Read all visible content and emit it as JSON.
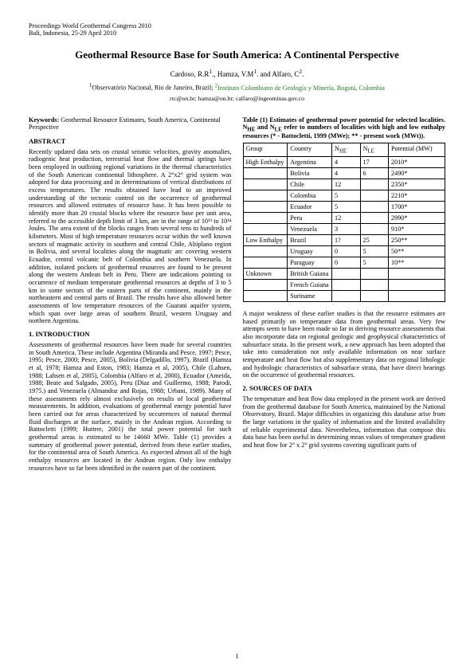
{
  "proc": {
    "line1": "Proceedings World Geothermal Congress 2010",
    "line2": "Bali, Indonesia, 25-29 April 2010"
  },
  "title": "Geothermal Resource Base for South America: A Continental Perspective",
  "authors_html": "Cardoso, R.R<sup>1</sup>., Hamza, V.M<sup>1</sup>. and Alfaro, C<sup>2</sup>.",
  "affil_html": "<sup>1</sup>Observatório Nacional, Rio de Janeiro, Brazil; <span class='green'><sup>2</sup>Instituto Colombiano de Geología y Minería, Bogotá, Colombia</span>",
  "emails": "rrc@on.br; hamza@on.br; calfaro@ingeominas.gov.co",
  "keywords_label": "Keywords:",
  "keywords_text": " Geothermal Resource Estimates, South America, Continental Perspective",
  "abstract_head": "ABSTRACT",
  "abstract_text": "Recently updated data sets on crustal seismic velocities, gravity anomalies, radiogenic heat production, terrestrial heat flow and thermal springs have been employed in outlining regional variations in the thermal characteristics of the South American continental lithosphere. A 2°x2° grid system was adopted for data processing and in determinations of vertical distributions of excess temperatures. The results obtained have lead to an improved understanding of the tectonic control on the occurrence of geothermal resources and allowed estimates of resource base. It has been possible to identify more than 20 crustal blocks where the resource base per unit area, referred to the accessible depth limit of 3 km, are in the range of 10¹³ to 10¹⁴ Joules. The area extent of the blocks ranges from several tens to hundreds of kilometers. Most of high temperature resources occur within the well known sectors of magmatic activity in southern and central Chile, Altiplano region in Bolivia, and several localities along the magmatic arc covering western Ecuador, central volcanic belt of Colombia and southern Venezuela. In addition, isolated pockets of geothermal resources are found to be present along the western Andean belt in Peru. There are indications pointing to occurrence of medium temperature geothermal resources at depths of 3 to 5 km in some sectors of the eastern parts of the continent, mainly in the northeastern and central parts of Brazil. The results have also allowed better assessments of low temperature resources of the Guarani aquifer system, which span over large areas of southern Brazil, western Uruguay and northern Argentina.",
  "intro_head": "1. INTRODUCTION",
  "intro_text": "Assessments of geothermal resources have been made for several countries in South America. These include Argentina (Miranda and Pesce, 1997; Pesce, 1995; Pesce, 2000; Pesce, 2005), Bolivia (Delgadillo, 1997), Brazil (Hamza et al, 1978; Hamza and Eston, 1983; Hamza et al, 2005), Chile (Lahsen, 1988; Lahsen et al, 2005), Colombia (Alfaro et al, 2000), Ecuador (Ameida, 1988; Beate and Salgado, 2005), Peru (Diaz and Guillermo, 1988; Parodi, 1975.) and Venezuela (Almandoz and Rojas, 1988; Urbani, 1989). Many of these assessments rely almost exclusively on results of local geothermal measurements. In addition, evaluations of geothermal energy potential have been carried out for areas characterized by occurrences of natural thermal fluid discharges at the surface, mainly in the Andean region. According to Battocletti (1999; Huttrer, 2001) the total power potential for such geothermal areas is estimated to be 14660 MWe. Table (1) provides a summary of geothermal power potential, derived from these earlier studies, for the continental area of South America. As expected almost all of the high enthalpy resources are located in the Andean region. Only low enthalpy resources have so far been identified in the eastern part of the continent.",
  "table_caption": "Table (1) Estimates of geothermal power potential for selected localities. N_HE and N_LE refer to numbers of localities with high and low enthalpy resources (* - Battocletti, 1999 (MWe); ** - present work (MWt)).",
  "table": {
    "columns": [
      "Group",
      "Country",
      "N_HE",
      "N_LE",
      "Potential (MW)"
    ],
    "rows": [
      [
        "High Enthalpy",
        "Argentina",
        "4",
        "17",
        "2010*"
      ],
      [
        "",
        "Bolivia",
        "4",
        "6",
        "2490*"
      ],
      [
        "",
        "Chile",
        "12",
        "",
        "2350*"
      ],
      [
        "",
        "Colombia",
        "5",
        "",
        "2210*"
      ],
      [
        "",
        "Ecuador",
        "5",
        "",
        "1700*"
      ],
      [
        "",
        "Peru",
        "12",
        "",
        "2990*"
      ],
      [
        "",
        "Venezuela",
        "3",
        "",
        "910*"
      ],
      [
        "Low Enthalpy",
        "Brazil",
        "1?",
        "25",
        "250**"
      ],
      [
        "",
        "Uruguay",
        "0",
        "5",
        "50**"
      ],
      [
        "",
        "Paraguay",
        "0",
        "5",
        "10**"
      ],
      [
        "Unknown",
        "British Guiana",
        "",
        "",
        ""
      ],
      [
        "",
        "French Guiana",
        "",
        "",
        ""
      ],
      [
        "",
        "Suriname",
        "",
        "",
        ""
      ]
    ],
    "col_widths": [
      "22%",
      "22%",
      "14%",
      "14%",
      "28%"
    ]
  },
  "after_table_text": "A major weakness of these earlier studies is that the resource estimates are based primarily on temperature data from geothermal areas. Very few attempts seem to have been made so far in deriving resource assessments that also incorporate data on regional geologic and geophysical characteristics of subsurface strata. In the present work, a new approach has been adopted that take into consideration not only available information on near surface temperature and heat flow but also supplementary data on regional lithologic and hydrologic characteristics of subsurface strata, that have direct bearings on the occurrence of geothermal resources.",
  "sources_head": "2. SOURCES OF DATA",
  "sources_text": "The temperature and heat flow data employed in the present work are derived from the geothermal database for South America, maintained by the National Observatory, Brazil. Major difficulties in organizing this database arise from the large variations in the quality of information and the limited availability of reliable experimental data. Nevertheless, information that compose this data base has been useful in determining mean values of temperature gradient and heat flow for 2° x 2° grid systems covering significant parts of",
  "pagenum": "1"
}
